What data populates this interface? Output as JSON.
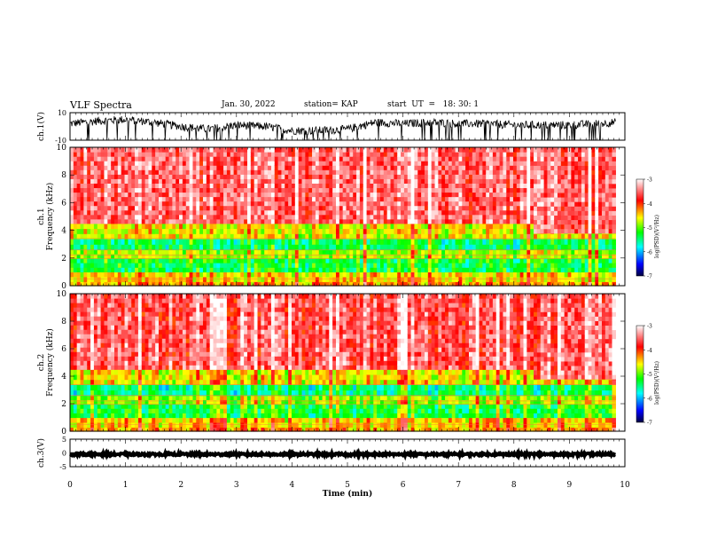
{
  "header": {
    "title": "VLF Spectra",
    "date": "Jan. 30, 2022",
    "station": "station= KAP",
    "start": "start  UT  =   18: 30: 1"
  },
  "chart_data": [
    {
      "type": "line",
      "panel": "ch1-waveform",
      "ylabel": "ch.1(V)",
      "ylim": [
        -10,
        10
      ],
      "yticks": [
        "10",
        "-10"
      ],
      "x_range_min": [
        0,
        9.83
      ],
      "series": [
        {
          "color": "#000000",
          "x": [
            0,
            0.5,
            1.0,
            1.5,
            2.0,
            2.5,
            3.0,
            3.5,
            4.0,
            4.5,
            5.0,
            5.5,
            6.0,
            6.5,
            7.0,
            7.5,
            8.0,
            8.5,
            9.0,
            9.5,
            9.83
          ],
          "y": [
            2,
            4,
            5,
            3,
            0,
            -2,
            1,
            0,
            -3,
            -3,
            -2,
            3,
            2,
            3,
            2,
            2,
            1,
            1,
            1,
            2,
            3
          ]
        }
      ]
    },
    {
      "type": "heatmap",
      "panel": "ch1-spectrogram",
      "ylabel": "ch.1",
      "ylabel2": "Frequency (kHz)",
      "ylim": [
        0,
        10
      ],
      "yticks": [
        0,
        2,
        4,
        6,
        8,
        10
      ],
      "x_range_min": [
        0,
        9.83
      ],
      "band_edges_khz": [
        0,
        0.3,
        1.0,
        2.0,
        2.6,
        3.4,
        4.5,
        10
      ],
      "band_levels_log": [
        -4.3,
        -4.5,
        -5.3,
        -4.8,
        -5.4,
        -4.6,
        -3.5
      ],
      "colorbar": {
        "label": "log(PSD)(V²/Hz)",
        "range": [
          -7,
          -3
        ],
        "ticks": [
          "-3",
          "-4",
          "-5",
          "-6",
          "-7"
        ]
      }
    },
    {
      "type": "heatmap",
      "panel": "ch2-spectrogram",
      "ylabel": "ch.2",
      "ylabel2": "Frequency (kHz)",
      "ylim": [
        0,
        10
      ],
      "yticks": [
        0,
        2,
        4,
        6,
        8,
        10
      ],
      "x_range_min": [
        0,
        9.83
      ],
      "band_edges_khz": [
        0,
        0.3,
        1.0,
        2.0,
        2.6,
        3.4,
        4.5,
        10
      ],
      "band_levels_log": [
        -4.3,
        -4.5,
        -5.3,
        -4.9,
        -5.5,
        -4.6,
        -3.6
      ],
      "colorbar": {
        "label": "log(PSD)(V²/Hz)",
        "range": [
          -7,
          -3
        ],
        "ticks": [
          "-3",
          "-4",
          "-5",
          "-6",
          "-7"
        ]
      }
    },
    {
      "type": "line",
      "panel": "ch3-waveform",
      "ylabel": "ch.3(V)",
      "ylim": [
        -5,
        5
      ],
      "yticks": [
        "5",
        "0",
        "-5"
      ],
      "x_range_min": [
        0,
        9.83
      ],
      "series": [
        {
          "color": "#000000",
          "x": [
            0,
            9.83
          ],
          "y": [
            -0.5,
            -0.5
          ]
        }
      ]
    }
  ],
  "x_axis": {
    "label": "Time (min)",
    "ticks": [
      "0",
      "1",
      "2",
      "3",
      "4",
      "5",
      "6",
      "7",
      "8",
      "9",
      "10"
    ],
    "range": [
      0,
      10
    ]
  }
}
